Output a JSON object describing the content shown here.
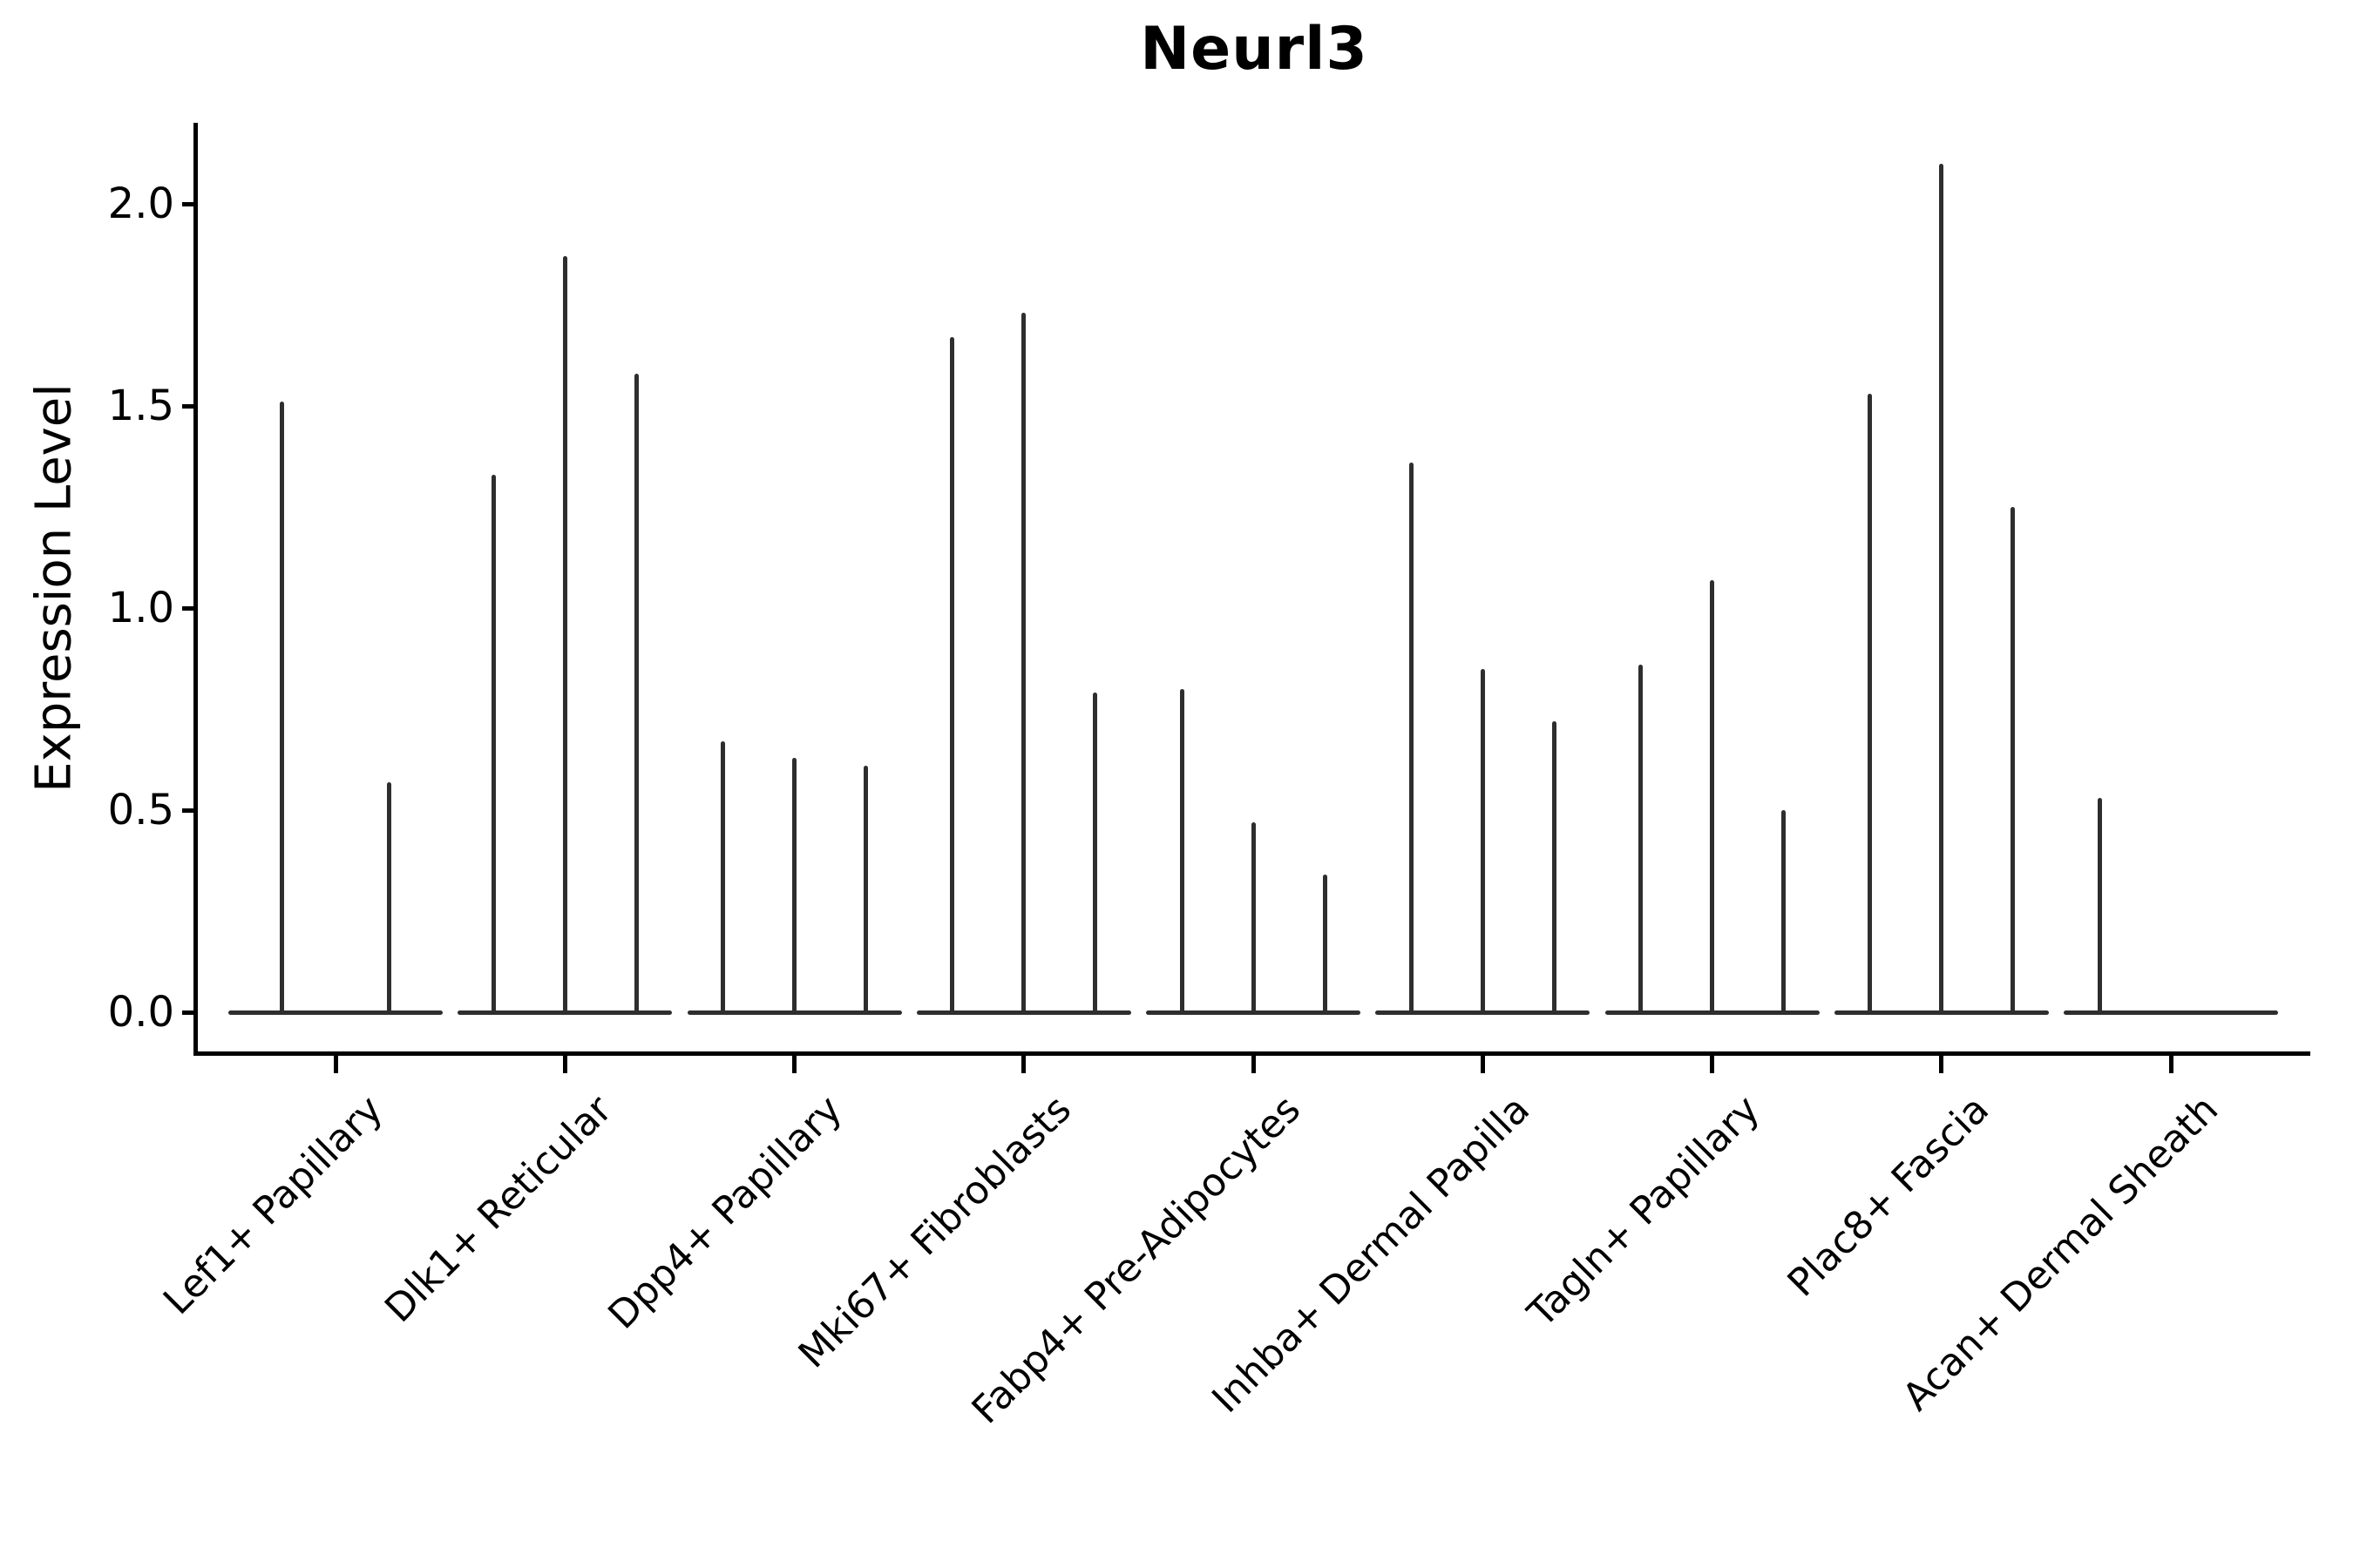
{
  "chart_data": {
    "type": "violin",
    "title": "Neurl3",
    "ylabel": "Expression Level",
    "xlabel": "",
    "yticks": [
      0.0,
      0.5,
      1.0,
      1.5,
      2.0
    ],
    "ylim": [
      -0.1,
      2.2
    ],
    "grid": false,
    "legend": "none",
    "categories": [
      "Lef1+ Papillary",
      "Dlk1+ Reticular",
      "Dpp4+ Papillary",
      "Mki67+ Fibroblasts",
      "Fabp4+ Pre-Adipocytes",
      "Inhba+ Dermal Papilla",
      "Tagln+ Papillary",
      "Plac8+ Fascia",
      "Acan+ Dermal Sheath"
    ],
    "groups": [
      {
        "category": "Lef1+ Papillary",
        "violin_peaks": [
          1.51,
          0.57
        ]
      },
      {
        "category": "Dlk1+ Reticular",
        "violin_peaks": [
          1.33,
          1.87,
          1.58
        ]
      },
      {
        "category": "Dpp4+ Papillary",
        "violin_peaks": [
          0.67,
          0.63,
          0.61
        ]
      },
      {
        "category": "Mki67+ Fibroblasts",
        "violin_peaks": [
          1.67,
          1.73,
          0.79
        ]
      },
      {
        "category": "Fabp4+ Pre-Adipocytes",
        "violin_peaks": [
          0.8,
          0.47,
          0.34
        ]
      },
      {
        "category": "Inhba+ Dermal Papilla",
        "violin_peaks": [
          1.36,
          0.85,
          0.72
        ]
      },
      {
        "category": "Tagln+ Papillary",
        "violin_peaks": [
          0.86,
          1.07,
          0.5
        ]
      },
      {
        "category": "Plac8+ Fascia",
        "violin_peaks": [
          1.53,
          2.1,
          1.25
        ]
      },
      {
        "category": "Acan+ Dermal Sheath",
        "violin_peaks": [
          0.53,
          0.0,
          0.0
        ]
      }
    ],
    "colors": {
      "violin": "#2e2e2e",
      "spine": "#000000",
      "text": "#000000",
      "background": "#ffffff"
    }
  }
}
